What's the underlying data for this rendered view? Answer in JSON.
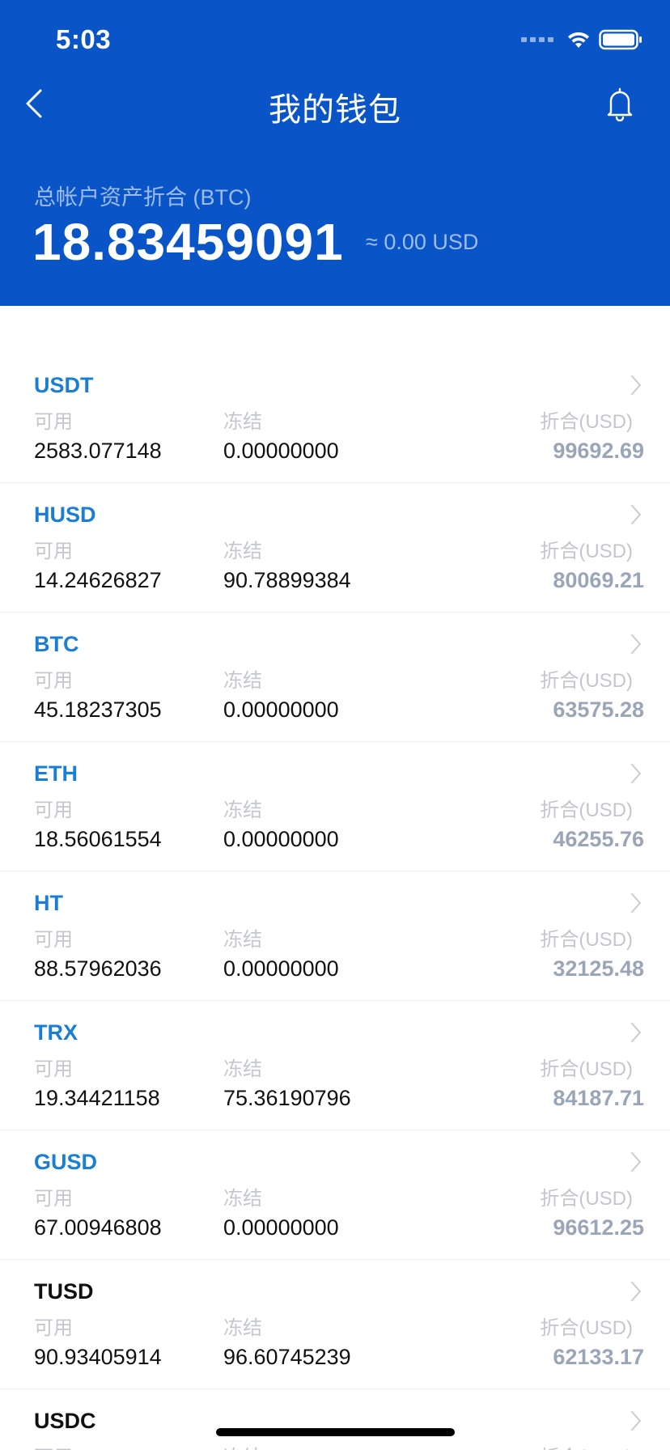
{
  "status_bar": {
    "time": "5:03"
  },
  "nav": {
    "title": "我的钱包",
    "back_icon": "chevron-left-icon",
    "bell_icon": "bell-icon"
  },
  "summary": {
    "label": "总帐户资产折合 (BTC)",
    "value": "18.83459091",
    "usd": "≈ 0.00 USD"
  },
  "colors": {
    "header_bg": "#0955c8",
    "coin_blue": "#1a7fd4",
    "coin_black": "#111111",
    "usd_value": "#9aa6b8",
    "label_gray": "#c3c7cd"
  },
  "columns": {
    "available": "可用",
    "frozen": "冻结",
    "usd": "折合(USD)"
  },
  "assets": [
    {
      "name": "USDT",
      "available": "2583.077148",
      "frozen": "0.00000000",
      "usd": "99692.69",
      "color": "#1a7fd4"
    },
    {
      "name": "HUSD",
      "available": "14.24626827",
      "frozen": "90.78899384",
      "usd": "80069.21",
      "color": "#1a7fd4"
    },
    {
      "name": "BTC",
      "available": "45.18237305",
      "frozen": "0.00000000",
      "usd": "63575.28",
      "color": "#1a7fd4"
    },
    {
      "name": "ETH",
      "available": "18.56061554",
      "frozen": "0.00000000",
      "usd": "46255.76",
      "color": "#1a7fd4"
    },
    {
      "name": "HT",
      "available": "88.57962036",
      "frozen": "0.00000000",
      "usd": "32125.48",
      "color": "#1a7fd4"
    },
    {
      "name": "TRX",
      "available": "19.34421158",
      "frozen": "75.36190796",
      "usd": "84187.71",
      "color": "#1a7fd4"
    },
    {
      "name": "GUSD",
      "available": "67.00946808",
      "frozen": "0.00000000",
      "usd": "96612.25",
      "color": "#1a7fd4"
    },
    {
      "name": "TUSD",
      "available": "90.93405914",
      "frozen": "96.60745239",
      "usd": "62133.17",
      "color": "#111111"
    },
    {
      "name": "USDC",
      "available": "",
      "frozen": "",
      "usd": "",
      "color": "#111111"
    }
  ]
}
